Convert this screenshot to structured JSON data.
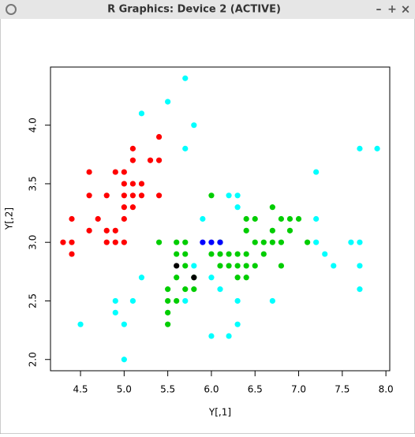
{
  "window": {
    "title": "R Graphics: Device 2 (ACTIVE)",
    "controls": [
      "–",
      "+",
      "×"
    ]
  },
  "chart_data": {
    "type": "scatter",
    "xlabel": "Y[,1]",
    "ylabel": "Y[,2]",
    "xlim": [
      4.156,
      8.044
    ],
    "ylim": [
      1.904,
      4.496
    ],
    "xticks": [
      4.5,
      {
        "value": 5,
        "label": "5.0"
      },
      5.5,
      {
        "value": 6,
        "label": "6.0"
      },
      6.5,
      {
        "value": 7,
        "label": "7.0"
      },
      7.5,
      {
        "value": 8,
        "label": "8.0"
      }
    ],
    "yticks": [
      {
        "value": 2,
        "label": "2.0"
      },
      2.5,
      {
        "value": 3,
        "label": "3.0"
      },
      3.5,
      {
        "value": 4,
        "label": "4.0"
      }
    ],
    "series": [
      {
        "color": "#ff0000",
        "x": [
          4.3,
          4.4,
          4.4,
          4.4,
          4.6,
          4.6,
          4.6,
          4.7,
          4.8,
          4.8,
          4.8,
          4.9,
          4.9,
          4.9,
          5.0,
          5.0,
          5.0,
          5.0,
          5.0,
          5.0,
          5.1,
          5.1,
          5.1,
          5.1,
          5.1,
          5.2,
          5.2,
          5.3,
          5.4,
          5.4,
          5.4
        ],
        "y": [
          3.0,
          3.0,
          2.9,
          3.2,
          3.1,
          3.4,
          3.6,
          3.2,
          3.4,
          3.0,
          3.1,
          3.6,
          3.1,
          3.0,
          3.6,
          3.5,
          3.4,
          3.3,
          3.2,
          3.0,
          3.8,
          3.7,
          3.5,
          3.4,
          3.3,
          3.5,
          3.4,
          3.7,
          3.9,
          3.7,
          3.4
        ]
      },
      {
        "color": "#00cd00",
        "x": [
          5.4,
          5.5,
          5.5,
          5.5,
          5.5,
          5.6,
          5.6,
          5.6,
          5.6,
          5.7,
          5.7,
          5.7,
          5.7,
          5.8,
          5.8,
          6.0,
          6.0,
          6.1,
          6.1,
          6.1,
          6.2,
          6.2,
          6.3,
          6.3,
          6.3,
          6.4,
          6.4,
          6.4,
          6.4,
          6.4,
          6.5,
          6.5,
          6.5,
          6.6,
          6.6,
          6.7,
          6.7,
          6.7,
          6.8,
          6.8,
          6.8,
          6.9,
          6.9,
          7.0,
          7.1
        ],
        "y": [
          3.0,
          2.6,
          2.5,
          2.4,
          2.3,
          3.0,
          2.9,
          2.7,
          2.5,
          3.0,
          2.9,
          2.8,
          2.6,
          2.7,
          2.6,
          3.4,
          2.9,
          3.0,
          2.9,
          2.8,
          2.9,
          2.8,
          2.9,
          2.8,
          2.7,
          3.2,
          3.1,
          2.9,
          2.8,
          2.7,
          3.2,
          3.0,
          2.8,
          3.0,
          2.9,
          3.3,
          3.1,
          3.0,
          3.2,
          3.0,
          2.8,
          3.2,
          3.1,
          3.2,
          3.0
        ]
      },
      {
        "color": "#00ffff",
        "x": [
          4.5,
          4.9,
          4.9,
          5.0,
          5.0,
          5.1,
          5.2,
          5.2,
          5.5,
          5.7,
          5.7,
          5.8,
          5.7,
          5.8,
          5.9,
          6.0,
          6.0,
          6.1,
          6.2,
          6.2,
          6.3,
          6.3,
          6.3,
          6.3,
          6.7,
          7.2,
          7.2,
          7.2,
          7.3,
          7.4,
          7.6,
          7.7,
          7.7,
          7.7,
          7.7,
          7.9
        ],
        "y": [
          2.3,
          2.5,
          2.4,
          2.3,
          2.0,
          2.5,
          2.7,
          4.1,
          4.2,
          4.4,
          3.8,
          4.0,
          2.5,
          2.8,
          3.2,
          2.7,
          2.2,
          2.6,
          2.2,
          3.4,
          3.4,
          3.3,
          2.5,
          2.3,
          2.5,
          3.6,
          3.2,
          3.0,
          2.9,
          2.8,
          3.0,
          3.8,
          3.0,
          2.8,
          2.6,
          3.8
        ]
      },
      {
        "color": "#0000ff",
        "x": [
          5.9,
          6.0,
          6.1
        ],
        "y": [
          3.0,
          3.0,
          3.0
        ]
      },
      {
        "color": "#000000",
        "x": [
          5.6,
          5.8
        ],
        "y": [
          2.8,
          2.7
        ]
      }
    ]
  }
}
